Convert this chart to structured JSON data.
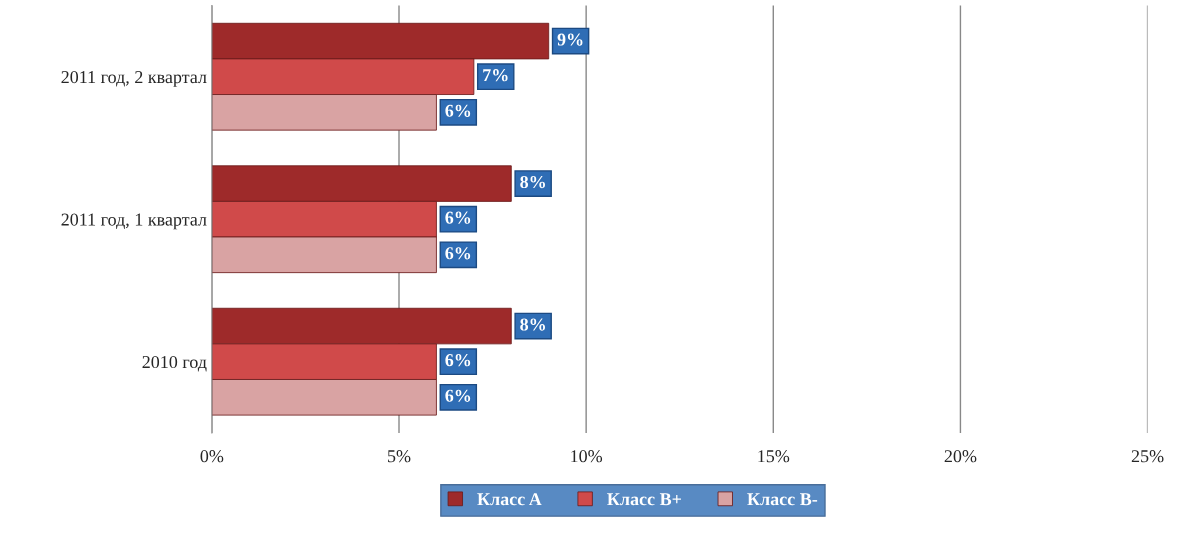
{
  "chart_data": {
    "type": "bar",
    "orientation": "horizontal",
    "categories": [
      "2011 год, 2 квартал",
      "2011 год, 1 квартал",
      "2010 год"
    ],
    "series": [
      {
        "name": "Класс A",
        "color": "#9e2a2a",
        "values": [
          9,
          8,
          8
        ],
        "value_labels": [
          "9%",
          "8%",
          "8%"
        ]
      },
      {
        "name": "Класс B+",
        "color": "#d04a4a",
        "values": [
          7,
          6,
          6
        ],
        "value_labels": [
          "7%",
          "6%",
          "6%"
        ]
      },
      {
        "name": "Класс B-",
        "color": "#d9a3a3",
        "values": [
          6,
          6,
          6
        ],
        "value_labels": [
          "6%",
          "6%",
          "6%"
        ]
      }
    ],
    "xlim": [
      0,
      25
    ],
    "xticks": [
      {
        "value": 0,
        "label": "0%"
      },
      {
        "value": 5,
        "label": "5%"
      },
      {
        "value": 10,
        "label": "10%"
      },
      {
        "value": 15,
        "label": "15%"
      },
      {
        "value": 20,
        "label": "20%"
      },
      {
        "value": 25,
        "label": "25%"
      }
    ],
    "grid": "x",
    "legend": "bottom"
  }
}
